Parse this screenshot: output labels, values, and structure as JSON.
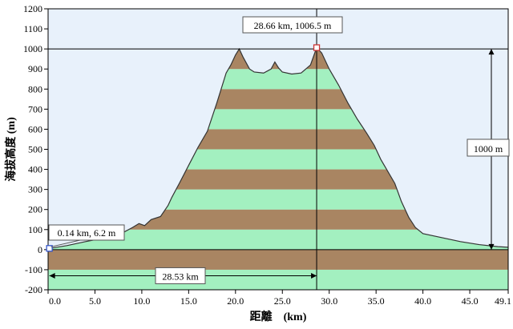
{
  "chart_data": {
    "type": "area",
    "xlabel": "距離　(km)",
    "ylabel": "海拔高度 (m)",
    "xlim": [
      0,
      49.1
    ],
    "ylim": [
      -200,
      1200
    ],
    "x_ticks": [
      0.0,
      5.0,
      10.0,
      15.0,
      20.0,
      25.0,
      30.0,
      35.0,
      40.0,
      45.0,
      49.1
    ],
    "x_tick_labels": [
      "0.0",
      "5.0",
      "10.0",
      "15.0",
      "20.0",
      "25.0",
      "30.0",
      "35.0",
      "40.0",
      "45.0",
      "49.1"
    ],
    "y_ticks": [
      -200,
      -100,
      0,
      100,
      200,
      300,
      400,
      500,
      600,
      700,
      800,
      900,
      1000,
      1100,
      1200
    ],
    "y_tick_labels": [
      "-200",
      "-100",
      "0",
      "100",
      "200",
      "300",
      "400",
      "500",
      "600",
      "700",
      "800",
      "900",
      "1000",
      "1100",
      "1200"
    ],
    "band_height_m": 100,
    "colors": {
      "plot_background": "#e8f1fb",
      "band_green": "#a3f0c0",
      "band_brown": "#a98562",
      "profile_line": "#333333",
      "grid_line": "#000000"
    },
    "series": [
      {
        "points": [
          [
            0.0,
            6
          ],
          [
            0.14,
            6.2
          ],
          [
            2.0,
            20
          ],
          [
            4.0,
            40
          ],
          [
            6.0,
            58
          ],
          [
            8.0,
            85
          ],
          [
            9.0,
            110
          ],
          [
            9.7,
            130
          ],
          [
            10.3,
            120
          ],
          [
            11.0,
            150
          ],
          [
            12.0,
            165
          ],
          [
            12.8,
            220
          ],
          [
            13.2,
            260
          ],
          [
            14.0,
            330
          ],
          [
            15.0,
            420
          ],
          [
            16.0,
            510
          ],
          [
            17.0,
            590
          ],
          [
            18.0,
            730
          ],
          [
            19.0,
            880
          ],
          [
            19.5,
            920
          ],
          [
            20.0,
            970
          ],
          [
            20.4,
            1000
          ],
          [
            20.8,
            960
          ],
          [
            21.5,
            900
          ],
          [
            22.0,
            885
          ],
          [
            23.0,
            880
          ],
          [
            23.8,
            900
          ],
          [
            24.2,
            935
          ],
          [
            24.6,
            905
          ],
          [
            25.0,
            885
          ],
          [
            26.0,
            875
          ],
          [
            27.0,
            880
          ],
          [
            28.0,
            920
          ],
          [
            28.66,
            1006.5
          ],
          [
            29.2,
            980
          ],
          [
            30.0,
            900
          ],
          [
            31.0,
            820
          ],
          [
            32.0,
            730
          ],
          [
            33.0,
            650
          ],
          [
            34.0,
            580
          ],
          [
            34.8,
            520
          ],
          [
            35.5,
            450
          ],
          [
            36.0,
            410
          ],
          [
            37.0,
            330
          ],
          [
            37.7,
            240
          ],
          [
            38.5,
            160
          ],
          [
            39.2,
            110
          ],
          [
            40.0,
            80
          ],
          [
            42.0,
            60
          ],
          [
            44.0,
            40
          ],
          [
            46.0,
            25
          ],
          [
            48.0,
            15
          ],
          [
            49.1,
            12
          ]
        ]
      }
    ],
    "annotations": {
      "start_point": {
        "x": 0.14,
        "y": 6.2,
        "label": "0.14 km, 6.2 m"
      },
      "peak_point": {
        "x": 28.66,
        "y": 1006.5,
        "label": "28.66 km, 1006.5 m"
      },
      "distance_span": {
        "from": 0.14,
        "to": 28.66,
        "label": "28.53 km"
      },
      "height_span": {
        "label": "1000 m"
      }
    }
  }
}
